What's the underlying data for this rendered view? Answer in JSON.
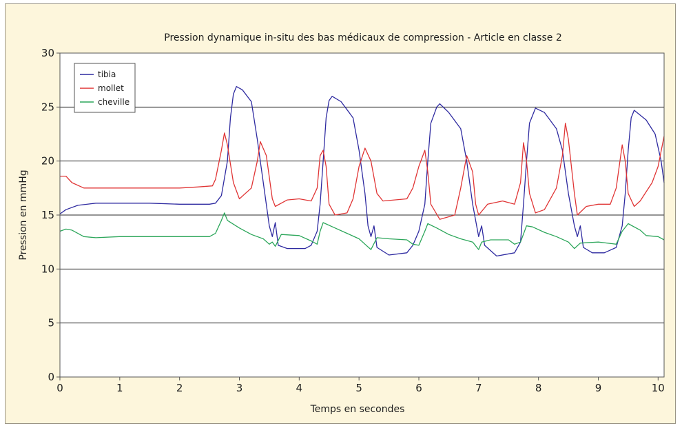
{
  "chart_data": {
    "type": "line",
    "title": "Pression dynamique in-situ des bas médicaux de compression - Article en classe 2",
    "xlabel": "Temps en secondes",
    "ylabel": "Pression en mmHg",
    "xlim": [
      0,
      10.1
    ],
    "ylim": [
      0,
      30
    ],
    "xticks": [
      "0",
      "1",
      "2",
      "3",
      "4",
      "5",
      "6",
      "7",
      "8",
      "9",
      "10"
    ],
    "yticks": [
      "0",
      "5",
      "10",
      "15",
      "20",
      "25",
      "30"
    ],
    "grid": "horizontal",
    "legend_position": "top-left",
    "series": [
      {
        "name": "tibia",
        "color": "#2e2aa0",
        "points": [
          [
            0,
            15.1
          ],
          [
            0.1,
            15.5
          ],
          [
            0.3,
            15.9
          ],
          [
            0.6,
            16.1
          ],
          [
            1.0,
            16.1
          ],
          [
            1.5,
            16.1
          ],
          [
            2.0,
            16.0
          ],
          [
            2.5,
            16.0
          ],
          [
            2.6,
            16.1
          ],
          [
            2.7,
            16.8
          ],
          [
            2.8,
            20.0
          ],
          [
            2.85,
            24.0
          ],
          [
            2.9,
            26.2
          ],
          [
            2.95,
            26.9
          ],
          [
            3.05,
            26.6
          ],
          [
            3.2,
            25.5
          ],
          [
            3.3,
            22.0
          ],
          [
            3.4,
            18.0
          ],
          [
            3.5,
            14.0
          ],
          [
            3.55,
            13.0
          ],
          [
            3.6,
            14.3
          ],
          [
            3.65,
            12.2
          ],
          [
            3.8,
            11.9
          ],
          [
            4.1,
            11.9
          ],
          [
            4.2,
            12.2
          ],
          [
            4.3,
            13.5
          ],
          [
            4.35,
            16.0
          ],
          [
            4.4,
            20.0
          ],
          [
            4.45,
            24.0
          ],
          [
            4.5,
            25.6
          ],
          [
            4.55,
            26.0
          ],
          [
            4.7,
            25.5
          ],
          [
            4.9,
            24.0
          ],
          [
            5.0,
            21.0
          ],
          [
            5.1,
            17.0
          ],
          [
            5.15,
            14.0
          ],
          [
            5.2,
            13.0
          ],
          [
            5.25,
            14.0
          ],
          [
            5.3,
            12.0
          ],
          [
            5.5,
            11.3
          ],
          [
            5.8,
            11.5
          ],
          [
            5.9,
            12.2
          ],
          [
            6.0,
            13.5
          ],
          [
            6.1,
            16.0
          ],
          [
            6.15,
            20.0
          ],
          [
            6.2,
            23.5
          ],
          [
            6.3,
            25.0
          ],
          [
            6.35,
            25.3
          ],
          [
            6.5,
            24.5
          ],
          [
            6.7,
            23.0
          ],
          [
            6.8,
            20.0
          ],
          [
            6.9,
            16.0
          ],
          [
            7.0,
            13.0
          ],
          [
            7.05,
            14.0
          ],
          [
            7.1,
            12.2
          ],
          [
            7.3,
            11.2
          ],
          [
            7.6,
            11.5
          ],
          [
            7.7,
            12.5
          ],
          [
            7.75,
            16.0
          ],
          [
            7.8,
            20.0
          ],
          [
            7.85,
            23.5
          ],
          [
            7.95,
            24.9
          ],
          [
            8.1,
            24.5
          ],
          [
            8.3,
            23.0
          ],
          [
            8.4,
            21.0
          ],
          [
            8.5,
            17.0
          ],
          [
            8.6,
            14.0
          ],
          [
            8.65,
            13.0
          ],
          [
            8.7,
            14.0
          ],
          [
            8.75,
            12.0
          ],
          [
            8.9,
            11.5
          ],
          [
            9.1,
            11.5
          ],
          [
            9.3,
            12.0
          ],
          [
            9.4,
            14.0
          ],
          [
            9.45,
            17.0
          ],
          [
            9.5,
            21.0
          ],
          [
            9.55,
            24.0
          ],
          [
            9.6,
            24.7
          ],
          [
            9.8,
            23.8
          ],
          [
            9.95,
            22.5
          ],
          [
            10.05,
            20.0
          ],
          [
            10.1,
            18.0
          ]
        ]
      },
      {
        "name": "mollet",
        "color": "#e03535",
        "points": [
          [
            0,
            18.6
          ],
          [
            0.1,
            18.6
          ],
          [
            0.2,
            18.0
          ],
          [
            0.4,
            17.5
          ],
          [
            0.8,
            17.5
          ],
          [
            1.5,
            17.5
          ],
          [
            2.0,
            17.5
          ],
          [
            2.3,
            17.6
          ],
          [
            2.55,
            17.7
          ],
          [
            2.6,
            18.3
          ],
          [
            2.7,
            21.0
          ],
          [
            2.75,
            22.6
          ],
          [
            2.8,
            21.5
          ],
          [
            2.9,
            18.0
          ],
          [
            3.0,
            16.5
          ],
          [
            3.2,
            17.5
          ],
          [
            3.3,
            20.0
          ],
          [
            3.35,
            21.8
          ],
          [
            3.45,
            20.5
          ],
          [
            3.55,
            16.5
          ],
          [
            3.6,
            15.8
          ],
          [
            3.8,
            16.4
          ],
          [
            4.0,
            16.5
          ],
          [
            4.2,
            16.3
          ],
          [
            4.3,
            17.5
          ],
          [
            4.35,
            20.5
          ],
          [
            4.4,
            21.0
          ],
          [
            4.45,
            19.5
          ],
          [
            4.5,
            16.0
          ],
          [
            4.6,
            15.0
          ],
          [
            4.8,
            15.2
          ],
          [
            4.9,
            16.5
          ],
          [
            5.0,
            19.5
          ],
          [
            5.1,
            21.2
          ],
          [
            5.2,
            20.0
          ],
          [
            5.3,
            17.0
          ],
          [
            5.4,
            16.3
          ],
          [
            5.8,
            16.5
          ],
          [
            5.9,
            17.5
          ],
          [
            6.0,
            19.5
          ],
          [
            6.1,
            21.0
          ],
          [
            6.15,
            19.0
          ],
          [
            6.2,
            16.0
          ],
          [
            6.35,
            14.6
          ],
          [
            6.6,
            15.0
          ],
          [
            6.7,
            17.5
          ],
          [
            6.8,
            20.5
          ],
          [
            6.9,
            19.0
          ],
          [
            6.95,
            16.0
          ],
          [
            7.0,
            15.0
          ],
          [
            7.15,
            16.0
          ],
          [
            7.4,
            16.3
          ],
          [
            7.6,
            16.0
          ],
          [
            7.7,
            18.0
          ],
          [
            7.75,
            21.7
          ],
          [
            7.8,
            20.0
          ],
          [
            7.85,
            17.0
          ],
          [
            7.95,
            15.2
          ],
          [
            8.1,
            15.5
          ],
          [
            8.3,
            17.5
          ],
          [
            8.4,
            20.5
          ],
          [
            8.45,
            23.5
          ],
          [
            8.5,
            22.0
          ],
          [
            8.6,
            17.0
          ],
          [
            8.65,
            15.0
          ],
          [
            8.8,
            15.8
          ],
          [
            9.0,
            16.0
          ],
          [
            9.2,
            16.0
          ],
          [
            9.3,
            17.5
          ],
          [
            9.4,
            21.5
          ],
          [
            9.45,
            20.0
          ],
          [
            9.5,
            17.0
          ],
          [
            9.6,
            15.8
          ],
          [
            9.7,
            16.3
          ],
          [
            9.9,
            18.0
          ],
          [
            10.0,
            19.5
          ],
          [
            10.1,
            22.3
          ]
        ]
      },
      {
        "name": "cheville",
        "color": "#2ca65a",
        "points": [
          [
            0,
            13.5
          ],
          [
            0.1,
            13.7
          ],
          [
            0.2,
            13.6
          ],
          [
            0.4,
            13.0
          ],
          [
            0.6,
            12.9
          ],
          [
            1.0,
            13.0
          ],
          [
            1.5,
            13.0
          ],
          [
            2.0,
            13.0
          ],
          [
            2.5,
            13.0
          ],
          [
            2.6,
            13.3
          ],
          [
            2.7,
            14.5
          ],
          [
            2.75,
            15.2
          ],
          [
            2.8,
            14.5
          ],
          [
            3.0,
            13.8
          ],
          [
            3.2,
            13.2
          ],
          [
            3.4,
            12.8
          ],
          [
            3.5,
            12.3
          ],
          [
            3.55,
            12.5
          ],
          [
            3.6,
            12.1
          ],
          [
            3.7,
            13.2
          ],
          [
            4.0,
            13.1
          ],
          [
            4.2,
            12.6
          ],
          [
            4.3,
            12.3
          ],
          [
            4.35,
            13.5
          ],
          [
            4.4,
            14.3
          ],
          [
            4.6,
            13.8
          ],
          [
            4.8,
            13.3
          ],
          [
            5.0,
            12.8
          ],
          [
            5.1,
            12.3
          ],
          [
            5.2,
            11.8
          ],
          [
            5.3,
            12.9
          ],
          [
            5.5,
            12.8
          ],
          [
            5.8,
            12.7
          ],
          [
            5.9,
            12.3
          ],
          [
            6.0,
            12.2
          ],
          [
            6.1,
            13.5
          ],
          [
            6.15,
            14.2
          ],
          [
            6.3,
            13.8
          ],
          [
            6.5,
            13.2
          ],
          [
            6.7,
            12.8
          ],
          [
            6.9,
            12.5
          ],
          [
            7.0,
            11.8
          ],
          [
            7.05,
            12.5
          ],
          [
            7.2,
            12.7
          ],
          [
            7.5,
            12.7
          ],
          [
            7.6,
            12.3
          ],
          [
            7.7,
            12.5
          ],
          [
            7.8,
            14.0
          ],
          [
            7.9,
            13.9
          ],
          [
            8.1,
            13.4
          ],
          [
            8.3,
            13.0
          ],
          [
            8.5,
            12.5
          ],
          [
            8.6,
            11.9
          ],
          [
            8.7,
            12.4
          ],
          [
            9.0,
            12.5
          ],
          [
            9.3,
            12.3
          ],
          [
            9.4,
            13.5
          ],
          [
            9.5,
            14.2
          ],
          [
            9.7,
            13.6
          ],
          [
            9.8,
            13.1
          ],
          [
            10.0,
            13.0
          ],
          [
            10.1,
            12.7
          ]
        ]
      }
    ]
  }
}
